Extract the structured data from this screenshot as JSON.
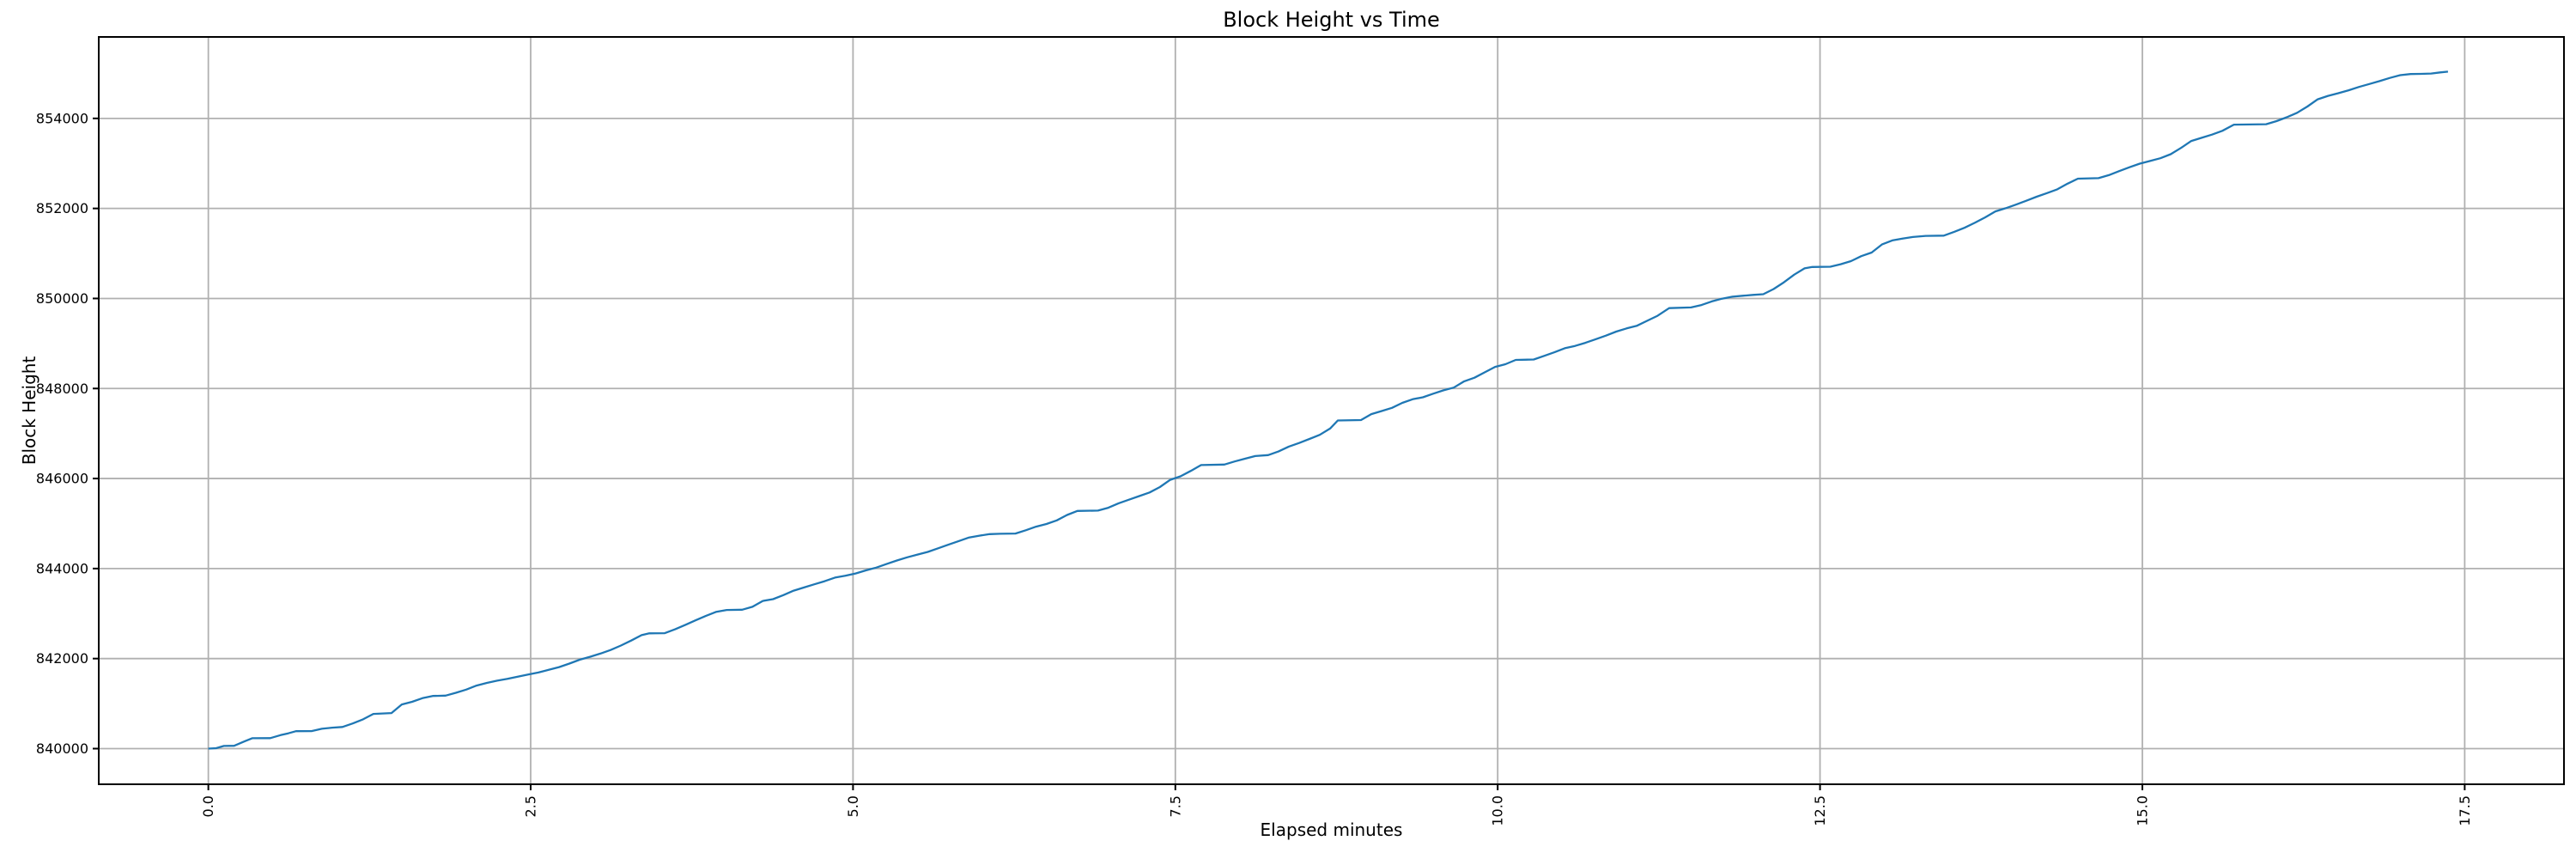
{
  "figure": {
    "title": "Block Height vs Time"
  },
  "chart_data": {
    "type": "line",
    "title": "Block Height vs Time",
    "xlabel": "Elapsed minutes",
    "ylabel": "Block Height",
    "legend": "none",
    "grid": true,
    "x_tick_rotation": 90,
    "x_ticks": [
      0.0,
      2.5,
      5.0,
      7.5,
      10.0,
      12.5,
      15.0,
      17.5
    ],
    "x_tick_labels": [
      "0.0",
      "2.5",
      "5.0",
      "7.5",
      "10.0",
      "12.5",
      "15.0",
      "17.5"
    ],
    "y_ticks": [
      840000,
      842000,
      844000,
      846000,
      848000,
      850000,
      852000,
      854000
    ],
    "y_tick_labels": [
      "840000",
      "842000",
      "844000",
      "846000",
      "848000",
      "850000",
      "852000",
      "854000"
    ],
    "xlim": [
      -0.85,
      18.27
    ],
    "ylim": [
      839208,
      855810
    ],
    "colors": {
      "line": "#1f77b4",
      "grid": "#b0b0b0",
      "spine": "#000000",
      "text": "#000000",
      "background": "#ffffff"
    },
    "series": [
      {
        "name": "block-height",
        "points": [
          [
            0.0,
            840000
          ],
          [
            0.06,
            840010
          ],
          [
            0.12,
            840060
          ],
          [
            0.2,
            840062
          ],
          [
            0.28,
            840160
          ],
          [
            0.34,
            840230
          ],
          [
            0.48,
            840232
          ],
          [
            0.56,
            840300
          ],
          [
            0.62,
            840340
          ],
          [
            0.68,
            840388
          ],
          [
            0.8,
            840390
          ],
          [
            0.88,
            840440
          ],
          [
            0.96,
            840465
          ],
          [
            1.04,
            840480
          ],
          [
            1.12,
            840560
          ],
          [
            1.2,
            840650
          ],
          [
            1.28,
            840770
          ],
          [
            1.42,
            840790
          ],
          [
            1.5,
            840980
          ],
          [
            1.58,
            841040
          ],
          [
            1.66,
            841120
          ],
          [
            1.74,
            841170
          ],
          [
            1.84,
            841178
          ],
          [
            1.92,
            841240
          ],
          [
            2.0,
            841310
          ],
          [
            2.08,
            841400
          ],
          [
            2.16,
            841460
          ],
          [
            2.24,
            841510
          ],
          [
            2.32,
            841550
          ],
          [
            2.4,
            841600
          ],
          [
            2.48,
            841645
          ],
          [
            2.56,
            841690
          ],
          [
            2.64,
            841750
          ],
          [
            2.72,
            841810
          ],
          [
            2.8,
            841890
          ],
          [
            2.88,
            841975
          ],
          [
            2.96,
            842040
          ],
          [
            3.04,
            842110
          ],
          [
            3.12,
            842190
          ],
          [
            3.2,
            842290
          ],
          [
            3.28,
            842400
          ],
          [
            3.36,
            842520
          ],
          [
            3.42,
            842560
          ],
          [
            3.54,
            842565
          ],
          [
            3.62,
            842650
          ],
          [
            3.7,
            842750
          ],
          [
            3.78,
            842850
          ],
          [
            3.86,
            842950
          ],
          [
            3.94,
            843040
          ],
          [
            4.02,
            843080
          ],
          [
            4.14,
            843085
          ],
          [
            4.22,
            843150
          ],
          [
            4.3,
            843280
          ],
          [
            4.38,
            843320
          ],
          [
            4.46,
            843410
          ],
          [
            4.54,
            843510
          ],
          [
            4.62,
            843580
          ],
          [
            4.7,
            843650
          ],
          [
            4.78,
            843720
          ],
          [
            4.86,
            843800
          ],
          [
            4.94,
            843840
          ],
          [
            5.02,
            843890
          ],
          [
            5.1,
            843960
          ],
          [
            5.18,
            844020
          ],
          [
            5.26,
            844100
          ],
          [
            5.34,
            844180
          ],
          [
            5.42,
            844250
          ],
          [
            5.5,
            844310
          ],
          [
            5.58,
            844370
          ],
          [
            5.66,
            844450
          ],
          [
            5.74,
            844530
          ],
          [
            5.82,
            844610
          ],
          [
            5.9,
            844690
          ],
          [
            5.98,
            844730
          ],
          [
            6.06,
            844765
          ],
          [
            6.14,
            844772
          ],
          [
            6.26,
            844778
          ],
          [
            6.34,
            844850
          ],
          [
            6.42,
            844930
          ],
          [
            6.5,
            844990
          ],
          [
            6.58,
            845070
          ],
          [
            6.66,
            845190
          ],
          [
            6.74,
            845280
          ],
          [
            6.9,
            845288
          ],
          [
            6.98,
            845350
          ],
          [
            7.06,
            845450
          ],
          [
            7.14,
            845530
          ],
          [
            7.22,
            845610
          ],
          [
            7.3,
            845690
          ],
          [
            7.38,
            845810
          ],
          [
            7.46,
            845970
          ],
          [
            7.54,
            846050
          ],
          [
            7.62,
            846170
          ],
          [
            7.7,
            846300
          ],
          [
            7.88,
            846310
          ],
          [
            7.96,
            846380
          ],
          [
            8.04,
            846440
          ],
          [
            8.12,
            846500
          ],
          [
            8.22,
            846520
          ],
          [
            8.3,
            846600
          ],
          [
            8.38,
            846710
          ],
          [
            8.46,
            846790
          ],
          [
            8.54,
            846880
          ],
          [
            8.62,
            846970
          ],
          [
            8.7,
            847110
          ],
          [
            8.76,
            847290
          ],
          [
            8.94,
            847300
          ],
          [
            9.02,
            847430
          ],
          [
            9.1,
            847500
          ],
          [
            9.18,
            847570
          ],
          [
            9.26,
            847680
          ],
          [
            9.34,
            847760
          ],
          [
            9.42,
            847805
          ],
          [
            9.5,
            847885
          ],
          [
            9.58,
            847960
          ],
          [
            9.66,
            848020
          ],
          [
            9.74,
            848160
          ],
          [
            9.82,
            848240
          ],
          [
            9.9,
            848360
          ],
          [
            9.98,
            848480
          ],
          [
            10.06,
            848540
          ],
          [
            10.14,
            848635
          ],
          [
            10.28,
            848645
          ],
          [
            10.36,
            848725
          ],
          [
            10.44,
            848805
          ],
          [
            10.52,
            848895
          ],
          [
            10.6,
            848945
          ],
          [
            10.68,
            849015
          ],
          [
            10.76,
            849095
          ],
          [
            10.84,
            849175
          ],
          [
            10.92,
            849265
          ],
          [
            11.0,
            849335
          ],
          [
            11.08,
            849395
          ],
          [
            11.16,
            849505
          ],
          [
            11.24,
            849615
          ],
          [
            11.33,
            849785
          ],
          [
            11.5,
            849800
          ],
          [
            11.58,
            849855
          ],
          [
            11.66,
            849935
          ],
          [
            11.74,
            849995
          ],
          [
            11.82,
            850040
          ],
          [
            11.9,
            850060
          ],
          [
            11.98,
            850080
          ],
          [
            12.06,
            850095
          ],
          [
            12.14,
            850210
          ],
          [
            12.22,
            850360
          ],
          [
            12.3,
            850530
          ],
          [
            12.38,
            850670
          ],
          [
            12.44,
            850700
          ],
          [
            12.58,
            850706
          ],
          [
            12.66,
            850760
          ],
          [
            12.74,
            850830
          ],
          [
            12.82,
            850940
          ],
          [
            12.9,
            851020
          ],
          [
            12.98,
            851200
          ],
          [
            13.06,
            851290
          ],
          [
            13.14,
            851330
          ],
          [
            13.22,
            851365
          ],
          [
            13.32,
            851390
          ],
          [
            13.46,
            851396
          ],
          [
            13.54,
            851480
          ],
          [
            13.62,
            851570
          ],
          [
            13.7,
            851680
          ],
          [
            13.78,
            851800
          ],
          [
            13.86,
            851935
          ],
          [
            13.94,
            852005
          ],
          [
            14.02,
            852085
          ],
          [
            14.1,
            852170
          ],
          [
            14.18,
            852260
          ],
          [
            14.26,
            852340
          ],
          [
            14.34,
            852425
          ],
          [
            14.42,
            852550
          ],
          [
            14.5,
            852662
          ],
          [
            14.66,
            852672
          ],
          [
            14.74,
            852740
          ],
          [
            14.82,
            852830
          ],
          [
            14.9,
            852915
          ],
          [
            14.98,
            852995
          ],
          [
            15.06,
            853055
          ],
          [
            15.14,
            853115
          ],
          [
            15.22,
            853205
          ],
          [
            15.3,
            853345
          ],
          [
            15.38,
            853500
          ],
          [
            15.46,
            853570
          ],
          [
            15.54,
            853640
          ],
          [
            15.62,
            853725
          ],
          [
            15.71,
            853862
          ],
          [
            15.96,
            853872
          ],
          [
            16.04,
            853940
          ],
          [
            16.12,
            854025
          ],
          [
            16.2,
            854125
          ],
          [
            16.28,
            854265
          ],
          [
            16.36,
            854425
          ],
          [
            16.44,
            854500
          ],
          [
            16.52,
            854560
          ],
          [
            16.6,
            854625
          ],
          [
            16.68,
            854700
          ],
          [
            16.76,
            854765
          ],
          [
            16.84,
            854830
          ],
          [
            16.92,
            854900
          ],
          [
            17.0,
            854960
          ],
          [
            17.08,
            854985
          ],
          [
            17.16,
            854990
          ],
          [
            17.24,
            854998
          ],
          [
            17.31,
            855022
          ],
          [
            17.37,
            855040
          ]
        ]
      }
    ]
  }
}
